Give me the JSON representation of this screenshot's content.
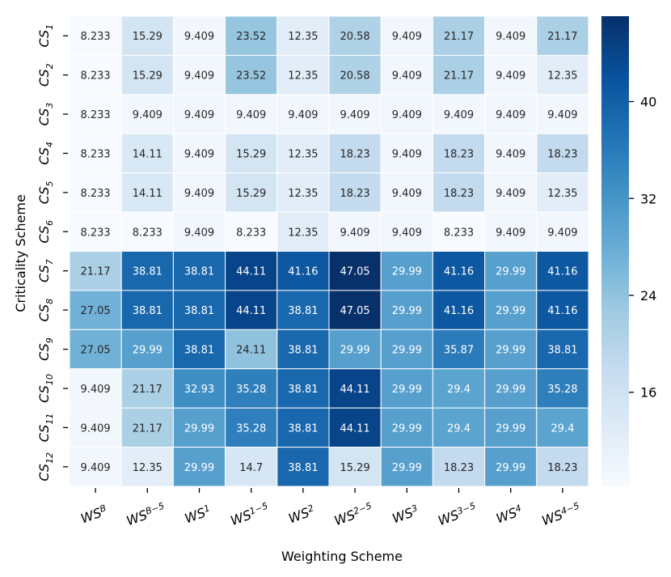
{
  "chart_data": {
    "type": "heatmap",
    "xlabel": "Weighting Scheme",
    "ylabel": "Criticality Scheme",
    "x_categories": [
      {
        "base": "WS",
        "sub": "B"
      },
      {
        "base": "WS",
        "sub": "B−5"
      },
      {
        "base": "WS",
        "sub": "1"
      },
      {
        "base": "WS",
        "sub": "1−5"
      },
      {
        "base": "WS",
        "sub": "2"
      },
      {
        "base": "WS",
        "sub": "2−5"
      },
      {
        "base": "WS",
        "sub": "3"
      },
      {
        "base": "WS",
        "sub": "3−5"
      },
      {
        "base": "WS",
        "sub": "4"
      },
      {
        "base": "WS",
        "sub": "4−5"
      }
    ],
    "y_categories": [
      {
        "base": "CS",
        "sub": "1"
      },
      {
        "base": "CS",
        "sub": "2"
      },
      {
        "base": "CS",
        "sub": "3"
      },
      {
        "base": "CS",
        "sub": "4"
      },
      {
        "base": "CS",
        "sub": "5"
      },
      {
        "base": "CS",
        "sub": "6"
      },
      {
        "base": "CS",
        "sub": "7"
      },
      {
        "base": "CS",
        "sub": "8"
      },
      {
        "base": "CS",
        "sub": "9"
      },
      {
        "base": "CS",
        "sub": "10"
      },
      {
        "base": "CS",
        "sub": "11"
      },
      {
        "base": "CS",
        "sub": "12"
      }
    ],
    "values": [
      [
        "8.233",
        "15.29",
        "9.409",
        "23.52",
        "12.35",
        "20.58",
        "9.409",
        "21.17",
        "9.409",
        "21.17"
      ],
      [
        "8.233",
        "15.29",
        "9.409",
        "23.52",
        "12.35",
        "20.58",
        "9.409",
        "21.17",
        "9.409",
        "12.35"
      ],
      [
        "8.233",
        "9.409",
        "9.409",
        "9.409",
        "9.409",
        "9.409",
        "9.409",
        "9.409",
        "9.409",
        "9.409"
      ],
      [
        "8.233",
        "14.11",
        "9.409",
        "15.29",
        "12.35",
        "18.23",
        "9.409",
        "18.23",
        "9.409",
        "18.23"
      ],
      [
        "8.233",
        "14.11",
        "9.409",
        "15.29",
        "12.35",
        "18.23",
        "9.409",
        "18.23",
        "9.409",
        "12.35"
      ],
      [
        "8.233",
        "8.233",
        "9.409",
        "8.233",
        "12.35",
        "9.409",
        "9.409",
        "8.233",
        "9.409",
        "9.409"
      ],
      [
        "21.17",
        "38.81",
        "38.81",
        "44.11",
        "41.16",
        "47.05",
        "29.99",
        "41.16",
        "29.99",
        "41.16"
      ],
      [
        "27.05",
        "38.81",
        "38.81",
        "44.11",
        "38.81",
        "47.05",
        "29.99",
        "41.16",
        "29.99",
        "41.16"
      ],
      [
        "27.05",
        "29.99",
        "38.81",
        "24.11",
        "38.81",
        "29.99",
        "29.99",
        "35.87",
        "29.99",
        "38.81"
      ],
      [
        "9.409",
        "21.17",
        "32.93",
        "35.28",
        "38.81",
        "44.11",
        "29.99",
        "29.4",
        "29.99",
        "35.28"
      ],
      [
        "9.409",
        "21.17",
        "29.99",
        "35.28",
        "38.81",
        "44.11",
        "29.99",
        "29.4",
        "29.99",
        "29.4"
      ],
      [
        "9.409",
        "12.35",
        "29.99",
        "14.7",
        "38.81",
        "15.29",
        "29.99",
        "18.23",
        "29.99",
        "18.23"
      ]
    ],
    "vmin": 8.233,
    "vmax": 47.05,
    "colormap": "Blues",
    "colorbar_ticks": [
      "16",
      "24",
      "32",
      "40"
    ],
    "text_color_light": "#ffffff",
    "text_color_dark": "#262626",
    "cell_border_color": "#ffffff"
  }
}
